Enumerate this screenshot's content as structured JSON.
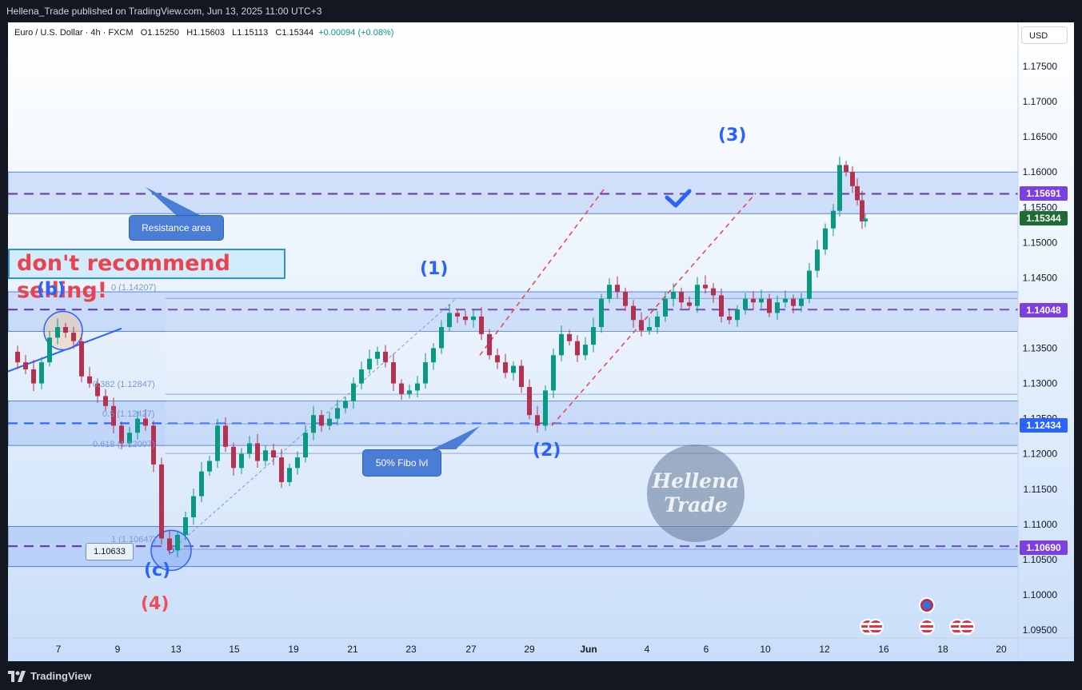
{
  "header": {
    "publish_text": "Hellena_Trade published on TradingView.com, Jun 13, 2025 11:00 UTC+3"
  },
  "legend": {
    "symbol": "Euro / U.S. Dollar · 4h · FXCM",
    "open_label": "O",
    "open": "1.15250",
    "high_label": "H",
    "high": "1.15603",
    "low_label": "L",
    "low": "1.15113",
    "close_label": "C",
    "close": "1.15344",
    "change": "+0.00094 (+0.08%)"
  },
  "currency_button": "USD",
  "footer": {
    "brand": "TradingView"
  },
  "annotations": {
    "resistance_callout": "Resistance area",
    "fibo_callout": "50% Fibo lvl",
    "warning_text": "don't recommend selling!",
    "price_tag": "1.10633",
    "watermark_line1": "Hellena",
    "watermark_line2": "Trade",
    "waves": {
      "w1": "(1)",
      "w2": "(2)",
      "w3": "(3)",
      "w4": "(4)",
      "wb": "(b)",
      "wc": "(c)"
    },
    "fib_levels": {
      "f0": "0 (1.14207)",
      "f382": "0.382 (1.12847)",
      "f50": "0.5 (1.12427)",
      "f618": "0.618 (1.12007)",
      "f1": "1 (1.10647)"
    }
  },
  "price_badges": {
    "resistance_mid": {
      "value": "1.15691",
      "color": "#7b3fe4"
    },
    "current": {
      "value": "1.15344",
      "color": "#1e6b34"
    },
    "support_mid": {
      "value": "1.14048",
      "color": "#7b3fe4"
    },
    "fibo_mid": {
      "value": "1.12434",
      "color": "#2962ff"
    },
    "bottom_mid": {
      "value": "1.10690",
      "color": "#7b3fe4"
    }
  },
  "chart_data": {
    "type": "candlestick",
    "symbol": "EURUSD",
    "timeframe": "4h",
    "x_tick_labels": [
      "7",
      "9",
      "13",
      "15",
      "19",
      "21",
      "23",
      "27",
      "29",
      "Jun",
      "4",
      "6",
      "10",
      "12",
      "16",
      "18",
      "20"
    ],
    "y_tick_labels": [
      "1.17500",
      "1.17000",
      "1.16500",
      "1.16000",
      "1.15500",
      "1.15000",
      "1.14500",
      "1.14000",
      "1.13500",
      "1.13000",
      "1.12500",
      "1.12000",
      "1.11500",
      "1.11000",
      "1.10500",
      "1.10000",
      "1.09500"
    ],
    "ylim": [
      1.093,
      1.178
    ],
    "zones": [
      {
        "name": "resistance",
        "top": 1.16,
        "bottom": 1.1541,
        "mid": 1.15691
      },
      {
        "name": "support",
        "top": 1.143,
        "bottom": 1.1374,
        "mid": 1.14048
      },
      {
        "name": "fibo",
        "top": 1.1275,
        "bottom": 1.1212,
        "mid": 1.12434
      },
      {
        "name": "bottom",
        "top": 1.1097,
        "bottom": 1.104,
        "mid": 1.1069
      }
    ],
    "colors": {
      "up": "#089981",
      "down": "#b6304f",
      "zone": "#bfd3fa",
      "dash": "#6a3fb5"
    }
  }
}
